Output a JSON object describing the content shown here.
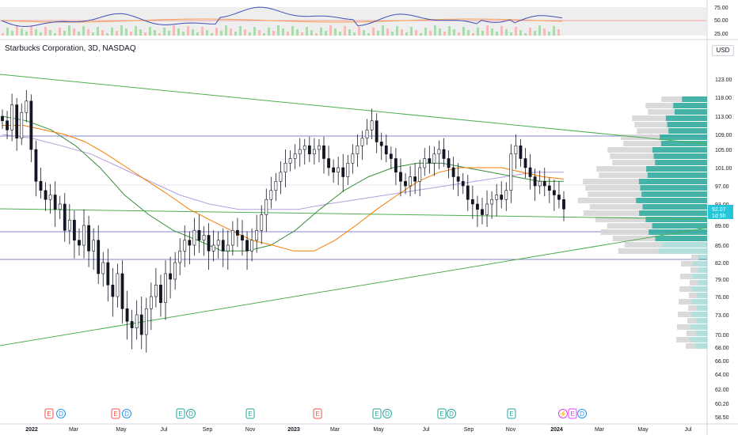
{
  "chart_title": "Starbucks Corporation, 3D, NASDAQ",
  "currency": "USD",
  "colors": {
    "up": "#26a69a",
    "down": "#ef5350",
    "candle_body_up": "#ffffff",
    "candle_body_down": "#131722",
    "trendline": "#4caf50",
    "hline": "#5c5cbd",
    "ma_orange": "#f57c00",
    "ma_green": "#388e3c",
    "ma_lavender": "#b39ddb",
    "rsi_line": "#3f51b5",
    "rsi_band": "#e0e0e0",
    "last_price_tag": "#26c6da"
  },
  "rsi_panel": {
    "ticks": [
      "75.00",
      "50.00",
      "25.00"
    ]
  },
  "price_axis": {
    "ticks": [
      "123.00",
      "118.00",
      "113.00",
      "109.00",
      "105.00",
      "101.00",
      "97.00",
      "93.00",
      "89.00",
      "85.00",
      "82.00",
      "79.00",
      "76.00",
      "73.00",
      "70.00",
      "68.00",
      "66.00",
      "64.00",
      "62.00",
      "60.20",
      "58.50"
    ],
    "last_price": "92.07",
    "countdown": "1d 5h"
  },
  "time_axis": {
    "labels": [
      "2022",
      "Mar",
      "May",
      "Jul",
      "Sep",
      "Nov",
      "2023",
      "Mar",
      "May",
      "Jul",
      "Sep",
      "Nov",
      "2024",
      "Mar",
      "May",
      "Jul"
    ]
  },
  "event_markers": [
    {
      "glyph": "E"
    },
    {
      "glyph": "D"
    },
    {
      "glyph": "E"
    },
    {
      "glyph": "D"
    },
    {
      "glyph": "E"
    },
    {
      "glyph": "D"
    },
    {
      "glyph": "E"
    },
    {
      "glyph": "D"
    },
    {
      "glyph": "E"
    },
    {
      "glyph": "E"
    },
    {
      "glyph": "D"
    },
    {
      "glyph": "E"
    },
    {
      "glyph": "D"
    },
    {
      "glyph": "E"
    },
    {
      "glyph": "D"
    },
    {
      "glyph": "⚡"
    },
    {
      "glyph": "E"
    },
    {
      "glyph": "D"
    }
  ],
  "chart_data": {
    "type": "candlestick",
    "series_closes": [
      112,
      110,
      116,
      108,
      114,
      117,
      105,
      98,
      96,
      94,
      95,
      92,
      93,
      88,
      90,
      86,
      85,
      89,
      84,
      86,
      80,
      82,
      78,
      76,
      80,
      74,
      72,
      71,
      73,
      70,
      74,
      76,
      78,
      75,
      80,
      79,
      82,
      84,
      86,
      85,
      88,
      86,
      87,
      84,
      85,
      86,
      84,
      85,
      88,
      87,
      86,
      84,
      86,
      88,
      91,
      94,
      96,
      98,
      100,
      102,
      103,
      104,
      105,
      106,
      104,
      105,
      106,
      103,
      101,
      100,
      101,
      99,
      102,
      104,
      106,
      108,
      110,
      112,
      107,
      106,
      104,
      103,
      100,
      98,
      97,
      99,
      98,
      101,
      103,
      102,
      104,
      105,
      103,
      101,
      99,
      98,
      97,
      94,
      93,
      92,
      91,
      93,
      94,
      95,
      94,
      96,
      104,
      106,
      103,
      101,
      99,
      97,
      98,
      97,
      96,
      95,
      94,
      92.07
    ],
    "ma_orange": [
      111,
      111,
      110,
      109,
      107,
      104,
      101,
      98,
      95,
      92,
      90,
      88,
      86,
      85,
      84,
      84,
      86,
      89,
      92,
      95,
      98,
      100,
      101,
      101,
      101,
      100,
      99,
      98.5
    ],
    "ma_green": [
      113,
      112,
      110,
      106,
      101,
      95,
      91,
      88,
      86,
      84,
      84,
      85,
      88,
      92,
      96,
      99,
      101,
      102,
      102,
      101,
      100,
      99,
      98,
      98
    ],
    "ma_lavender": [
      109,
      108,
      106,
      104,
      101,
      98,
      95,
      93,
      92,
      92,
      92,
      93,
      94,
      95,
      96,
      97,
      98,
      99,
      100,
      100
    ],
    "trendlines": [
      {
        "from": [
          0,
          126
        ],
        "to": [
          1,
          107
        ]
      },
      {
        "from": [
          0,
          72
        ],
        "to": [
          1,
          88.5
        ]
      },
      {
        "from": [
          0,
          92.5
        ],
        "to": [
          1,
          90
        ]
      }
    ],
    "horizontal_levels": [
      109,
      97,
      88.5,
      82.5
    ],
    "volume_profile_rows": 40,
    "rsi_range": [
      25,
      75
    ]
  }
}
